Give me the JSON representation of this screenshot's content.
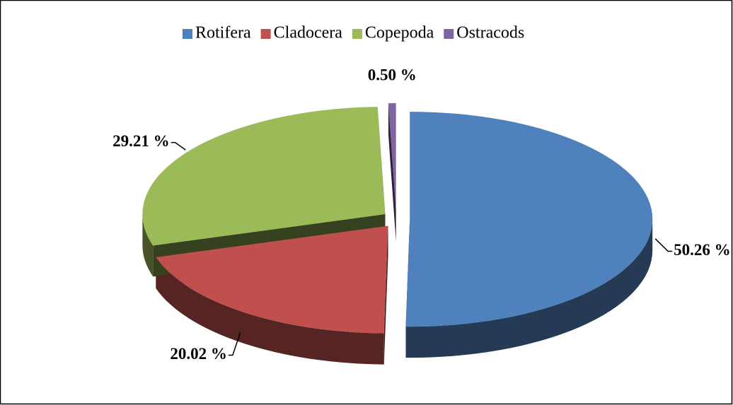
{
  "chart_data": {
    "type": "pie",
    "categories": [
      "Rotifera",
      "Cladocera",
      "Copepoda",
      "Ostracods"
    ],
    "values": [
      50.26,
      20.02,
      29.21,
      0.5
    ],
    "value_labels": [
      "50.26 %",
      "20.02 %",
      "29.21 %",
      "0.50 %"
    ],
    "colors": [
      "#4f81bd",
      "#c0504d",
      "#9bbb59",
      "#8064a2"
    ],
    "legend": "top"
  }
}
